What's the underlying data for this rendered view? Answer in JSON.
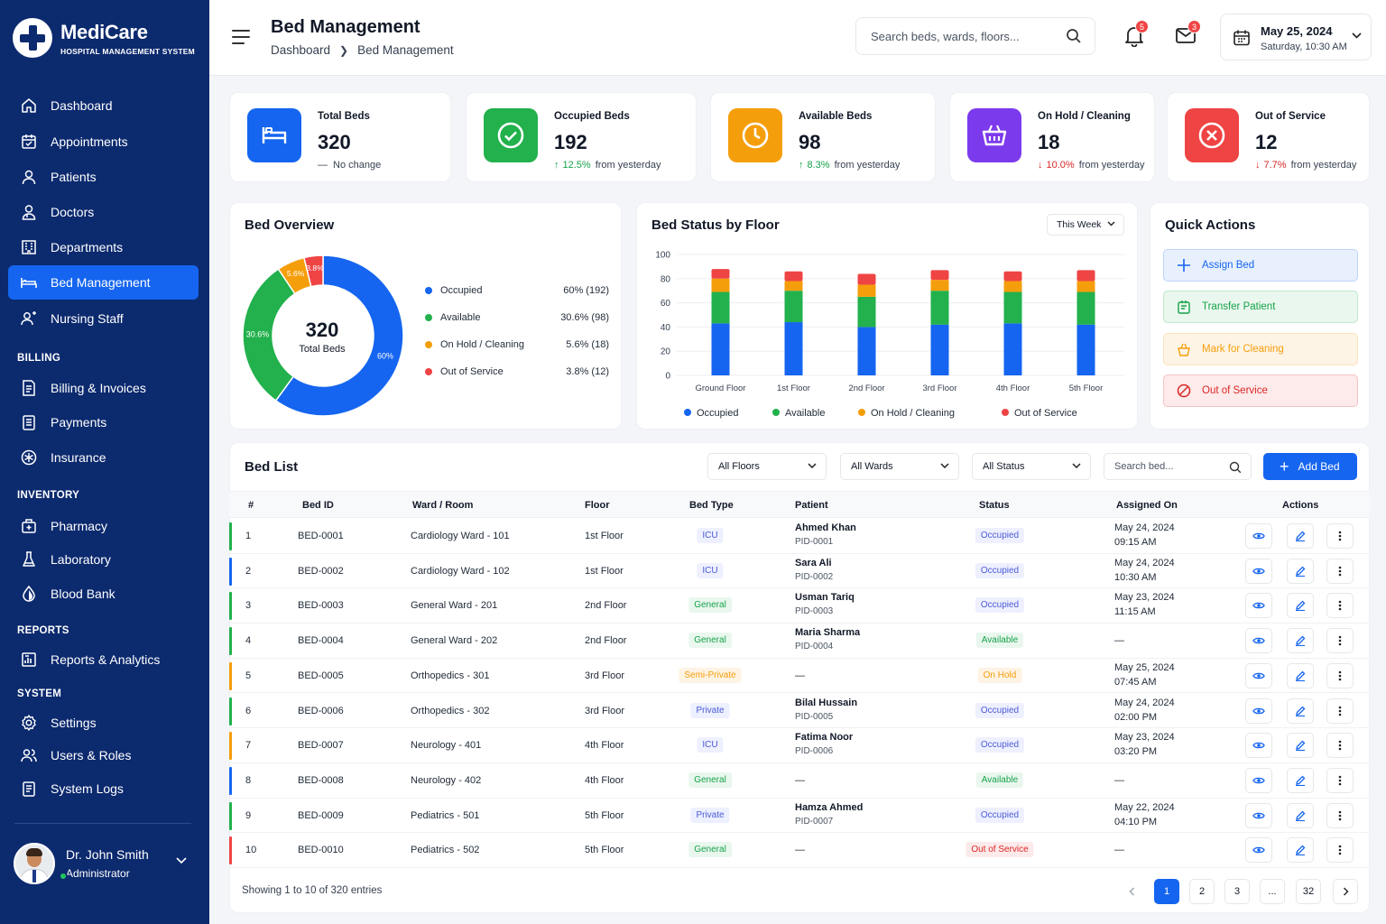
{
  "app": {
    "name": "MediCare",
    "subtitle": "HOSPITAL MANAGEMENT SYSTEM"
  },
  "sidebar": {
    "main": [
      {
        "label": "Dashboard",
        "icon": "home-icon"
      },
      {
        "label": "Appointments",
        "icon": "calendar-icon"
      },
      {
        "label": "Patients",
        "icon": "user-icon"
      },
      {
        "label": "Doctors",
        "icon": "doctor-icon"
      },
      {
        "label": "Departments",
        "icon": "building-icon"
      },
      {
        "label": "Bed Management",
        "icon": "bed-icon",
        "active": true
      },
      {
        "label": "Nursing Staff",
        "icon": "nurse-icon"
      }
    ],
    "sections": [
      "BILLING",
      "INVENTORY",
      "REPORTS",
      "SYSTEM"
    ],
    "billing": [
      {
        "label": "Billing & Invoices",
        "icon": "invoice-icon"
      },
      {
        "label": "Payments",
        "icon": "payment-icon"
      },
      {
        "label": "Insurance",
        "icon": "insurance-icon"
      }
    ],
    "inventory": [
      {
        "label": "Pharmacy",
        "icon": "pharmacy-icon"
      },
      {
        "label": "Laboratory",
        "icon": "flask-icon"
      },
      {
        "label": "Blood Bank",
        "icon": "blood-drop-icon"
      }
    ],
    "reports": [
      {
        "label": "Reports & Analytics",
        "icon": "analytics-icon"
      }
    ],
    "system": [
      {
        "label": "Settings",
        "icon": "gear-icon"
      },
      {
        "label": "Users & Roles",
        "icon": "users-icon"
      },
      {
        "label": "System Logs",
        "icon": "log-icon"
      }
    ],
    "profile": {
      "name": "Dr. John Smith",
      "role": "Administrator"
    }
  },
  "header": {
    "title": "Bed Management",
    "breadcrumb": [
      "Dashboard",
      "Bed Management"
    ],
    "search_placeholder": "Search beds, wards, floors...",
    "notifications": "5",
    "messages": "3",
    "date": "May 25, 2024",
    "datetime": "Saturday, 10:30 AM"
  },
  "stats": [
    {
      "label": "Total Beds",
      "value": "320",
      "change": "No change",
      "pct": "",
      "color": "#1565f0",
      "icon": "bed-icon"
    },
    {
      "label": "Occupied Beds",
      "value": "192",
      "pct": "12.5%",
      "change": "from yesterday",
      "trend": "up",
      "color": "#22b14c",
      "icon": "check-circle-icon"
    },
    {
      "label": "Available Beds",
      "value": "98",
      "pct": "8.3%",
      "change": "from yesterday",
      "trend": "up",
      "color": "#f59e0b",
      "icon": "clock-icon"
    },
    {
      "label": "On Hold / Cleaning",
      "value": "18",
      "pct": "10.0%",
      "change": "from yesterday",
      "trend": "down",
      "color": "#7c3aed",
      "icon": "basket-icon"
    },
    {
      "label": "Out of Service",
      "value": "12",
      "pct": "7.7%",
      "change": "from yesterday",
      "trend": "down",
      "color": "#ef4444",
      "icon": "x-circle-icon"
    }
  ],
  "overview": {
    "title": "Bed Overview",
    "center_value": "320",
    "center_label": "Total Beds",
    "legend": [
      {
        "label": "Occupied",
        "value": "60% (192)",
        "color": "#1565f0"
      },
      {
        "label": "Available",
        "value": "30.6% (98)",
        "color": "#22b14c"
      },
      {
        "label": "On Hold / Cleaning",
        "value": "5.6% (18)",
        "color": "#f59e0b"
      },
      {
        "label": "Out of Service",
        "value": "3.8% (12)",
        "color": "#ef4444"
      }
    ],
    "slice_labels": [
      "60%",
      "30.6%",
      "5.6%",
      "3.8%"
    ]
  },
  "floor_chart": {
    "title": "Bed Status by Floor",
    "period": "This Week"
  },
  "chart_data": {
    "type": "bar",
    "stacked": true,
    "categories": [
      "Ground Floor",
      "1st Floor",
      "2nd Floor",
      "3rd Floor",
      "4th Floor",
      "5th Floor"
    ],
    "series": [
      {
        "name": "Occupied",
        "color": "#1565f0",
        "values": [
          43,
          44,
          40,
          42,
          43,
          42
        ]
      },
      {
        "name": "Available",
        "color": "#22b14c",
        "values": [
          26,
          26,
          25,
          28,
          26,
          27
        ]
      },
      {
        "name": "On Hold / Cleaning",
        "color": "#f59e0b",
        "values": [
          11,
          8,
          10,
          9,
          9,
          9
        ]
      },
      {
        "name": "Out of Service",
        "color": "#ef4444",
        "values": [
          8,
          8,
          9,
          8,
          8,
          9
        ]
      }
    ],
    "ylim": [
      0,
      100
    ],
    "yticks": [
      0,
      20,
      40,
      60,
      80,
      100
    ],
    "legend": "bottom",
    "grid": true
  },
  "quick_actions": {
    "title": "Quick Actions",
    "items": [
      {
        "label": "Assign Bed",
        "icon": "plus-icon",
        "color": "#1565f0",
        "bg": "#e8f0fe"
      },
      {
        "label": "Transfer Patient",
        "icon": "transfer-icon",
        "color": "#16a34a",
        "bg": "#eaf7ee"
      },
      {
        "label": "Mark for Cleaning",
        "icon": "cleaning-icon",
        "color": "#f59e0b",
        "bg": "#fef4e6"
      },
      {
        "label": "Out of Service",
        "icon": "block-icon",
        "color": "#dc2626",
        "bg": "#fdeaea"
      }
    ]
  },
  "bed_list": {
    "title": "Bed List",
    "filters": [
      "All Floors",
      "All Wards",
      "All Status"
    ],
    "search_placeholder": "Search bed...",
    "add_label": "Add Bed",
    "columns": [
      "#",
      "Bed ID",
      "Ward / Room",
      "Floor",
      "Bed Type",
      "Patient",
      "Status",
      "Assigned On",
      "Actions"
    ],
    "rows": [
      {
        "n": "1",
        "id": "BED-0001",
        "ward": "Cardiology Ward - 101",
        "floor": "1st Floor",
        "type": "ICU",
        "patient": "Ahmed Khan",
        "pid": "PID-0001",
        "status": "Occupied",
        "date": "May 24, 2024",
        "time": "09:15 AM",
        "bar": "#22b14c"
      },
      {
        "n": "2",
        "id": "BED-0002",
        "ward": "Cardiology Ward - 102",
        "floor": "1st Floor",
        "type": "ICU",
        "patient": "Sara Ali",
        "pid": "PID-0002",
        "status": "Occupied",
        "date": "May 24, 2024",
        "time": "10:30 AM",
        "bar": "#1565f0"
      },
      {
        "n": "3",
        "id": "BED-0003",
        "ward": "General Ward - 201",
        "floor": "2nd Floor",
        "type": "General",
        "patient": "Usman Tariq",
        "pid": "PID-0003",
        "status": "Occupied",
        "date": "May 23, 2024",
        "time": "11:15 AM",
        "bar": "#22b14c"
      },
      {
        "n": "4",
        "id": "BED-0004",
        "ward": "General Ward - 202",
        "floor": "2nd Floor",
        "type": "General",
        "patient": "Maria Sharma",
        "pid": "PID-0004",
        "status": "Available",
        "date": "—",
        "time": "",
        "bar": "#22b14c"
      },
      {
        "n": "5",
        "id": "BED-0005",
        "ward": "Orthopedics - 301",
        "floor": "3rd Floor",
        "type": "Semi-Private",
        "patient": "—",
        "pid": "",
        "status": "On Hold",
        "date": "May 25, 2024",
        "time": "07:45 AM",
        "bar": "#f59e0b"
      },
      {
        "n": "6",
        "id": "BED-0006",
        "ward": "Orthopedics - 302",
        "floor": "3rd Floor",
        "type": "Private",
        "patient": "Bilal Hussain",
        "pid": "PID-0005",
        "status": "Occupied",
        "date": "May 24, 2024",
        "time": "02:00 PM",
        "bar": "#22b14c"
      },
      {
        "n": "7",
        "id": "BED-0007",
        "ward": "Neurology - 401",
        "floor": "4th Floor",
        "type": "ICU",
        "patient": "Fatima Noor",
        "pid": "PID-0006",
        "status": "Occupied",
        "date": "May 23, 2024",
        "time": "03:20 PM",
        "bar": "#f59e0b"
      },
      {
        "n": "8",
        "id": "BED-0008",
        "ward": "Neurology - 402",
        "floor": "4th Floor",
        "type": "General",
        "patient": "—",
        "pid": "",
        "status": "Available",
        "date": "—",
        "time": "",
        "bar": "#1565f0"
      },
      {
        "n": "9",
        "id": "BED-0009",
        "ward": "Pediatrics - 501",
        "floor": "5th Floor",
        "type": "Private",
        "patient": "Hamza Ahmed",
        "pid": "PID-0007",
        "status": "Occupied",
        "date": "May 22, 2024",
        "time": "04:10 PM",
        "bar": "#22b14c"
      },
      {
        "n": "10",
        "id": "BED-0010",
        "ward": "Pediatrics - 502",
        "floor": "5th Floor",
        "type": "General",
        "patient": "—",
        "pid": "",
        "status": "Out of Service",
        "date": "—",
        "time": "",
        "bar": "#ef4444"
      }
    ],
    "footer": "Showing 1 to 10 of 320 entries",
    "pages": [
      "1",
      "2",
      "3",
      "...",
      "32"
    ]
  }
}
